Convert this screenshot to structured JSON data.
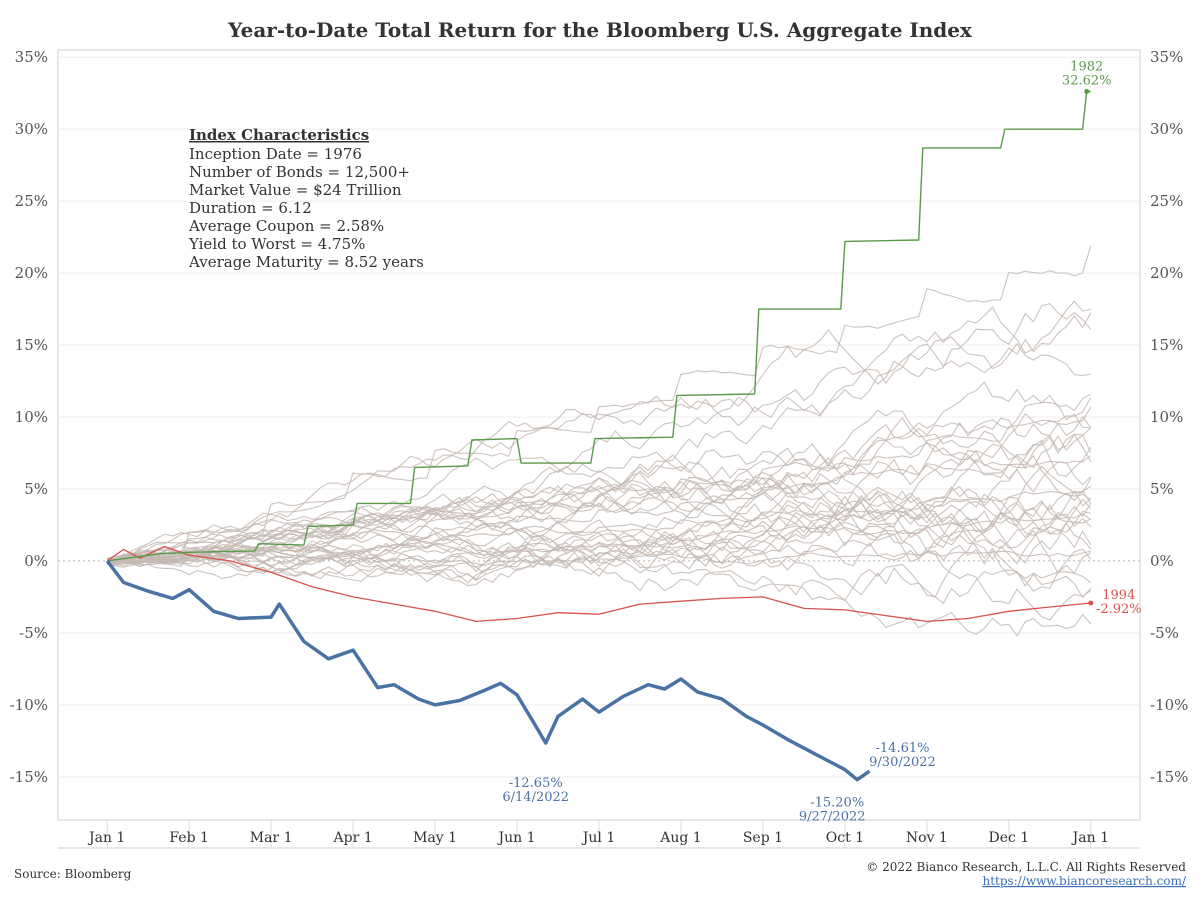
{
  "colors": {
    "highlight_2022": "#4a72a4",
    "year_1982": "#5a9a4a",
    "year_1994": "#d9534f",
    "other_years": "#c4b8b3",
    "link": "#3b6fb6"
  },
  "characteristics": {
    "heading": "Index Characteristics",
    "lines": [
      "Inception Date = 1976",
      "Number of Bonds = 12,500+",
      "Market Value = $24 Trillion",
      "Duration = 6.12",
      "Average Coupon = 2.58%",
      "Yield to Worst = 4.75%",
      "Average Maturity = 8.52 years"
    ]
  },
  "footer": {
    "source": "Source: Bloomberg",
    "copyright": "© 2022 Bianco Research, L.L.C. All Rights Reserved",
    "url": "https://www.biancoresearch.com/"
  },
  "chart_data": {
    "type": "line",
    "title": "Year-to-Date Total Return for the Bloomberg U.S. Aggregate Index",
    "xlabel": "",
    "ylabel": "",
    "x_unit": "months since Jan 1",
    "xlim": [
      -0.6,
      12.6
    ],
    "ylim": [
      -18,
      35.5
    ],
    "y_ticks": [
      35,
      30,
      25,
      20,
      15,
      10,
      5,
      0,
      -5,
      -10,
      -15
    ],
    "y_tick_labels": [
      "35%",
      "30%",
      "25%",
      "20%",
      "15%",
      "10%",
      "5%",
      "0%",
      "-5%",
      "-10%",
      "-15%"
    ],
    "x_ticks": [
      0,
      1,
      2,
      3,
      4,
      5,
      6,
      7,
      8,
      9,
      10,
      11,
      12
    ],
    "x_tick_labels": [
      "Jan 1",
      "Feb 1",
      "Mar 1",
      "Apr 1",
      "May 1",
      "Jun 1",
      "Jul 1",
      "Aug 1",
      "Sep 1",
      "Oct 1",
      "Nov 1",
      "Dec 1",
      "Jan 1"
    ],
    "grid": true,
    "zero_line": "dotted",
    "highlighted_series": [
      {
        "name": "2022",
        "x": [
          0,
          0.2,
          0.5,
          0.8,
          1.0,
          1.3,
          1.6,
          2.0,
          2.1,
          2.4,
          2.7,
          3.0,
          3.3,
          3.5,
          3.8,
          4.0,
          4.3,
          4.6,
          4.8,
          5.0,
          5.2,
          5.35,
          5.5,
          5.8,
          6.0,
          6.3,
          6.6,
          6.8,
          7.0,
          7.2,
          7.5,
          7.8,
          8.0,
          8.3,
          8.6,
          8.8,
          9.0,
          9.15,
          9.3
        ],
        "values": [
          0,
          -1.5,
          -2.1,
          -2.6,
          -2.0,
          -3.5,
          -4.0,
          -3.9,
          -3.0,
          -5.6,
          -6.8,
          -6.2,
          -8.8,
          -8.6,
          -9.6,
          -10.0,
          -9.7,
          -9.0,
          -8.5,
          -9.3,
          -11.2,
          -12.65,
          -10.8,
          -9.6,
          -10.5,
          -9.4,
          -8.6,
          -8.9,
          -8.2,
          -9.1,
          -9.6,
          -10.8,
          -11.4,
          -12.4,
          -13.3,
          -13.9,
          -14.5,
          -15.2,
          -14.61
        ]
      },
      {
        "name": "1982",
        "x": [
          0,
          0.65,
          1.0,
          1.8,
          1.85,
          2.4,
          2.45,
          3.0,
          3.05,
          3.7,
          3.75,
          4.4,
          4.45,
          5.0,
          5.05,
          5.9,
          5.95,
          6.9,
          6.95,
          7.9,
          7.95,
          8.95,
          9.0,
          9.9,
          9.95,
          10.9,
          10.95,
          11.9,
          11.95,
          12.0
        ],
        "values": [
          0,
          0.5,
          0.6,
          0.7,
          1.2,
          1.1,
          2.4,
          2.5,
          4.0,
          4.0,
          6.5,
          6.6,
          8.4,
          8.5,
          6.8,
          6.8,
          8.5,
          8.6,
          11.5,
          11.6,
          17.5,
          17.5,
          22.2,
          22.3,
          28.7,
          28.7,
          30.0,
          30.0,
          32.62,
          32.62
        ]
      },
      {
        "name": "1994",
        "x": [
          0,
          0.2,
          0.4,
          0.7,
          1.0,
          1.5,
          2.0,
          2.5,
          3.0,
          3.5,
          4.0,
          4.5,
          5.0,
          5.5,
          6.0,
          6.5,
          7.0,
          7.5,
          8.0,
          8.5,
          9.0,
          9.5,
          10.0,
          10.5,
          11.0,
          11.5,
          12.0
        ],
        "values": [
          0,
          0.8,
          0.2,
          1.0,
          0.4,
          0.0,
          -0.8,
          -1.8,
          -2.5,
          -3.0,
          -3.5,
          -4.2,
          -4.0,
          -3.6,
          -3.7,
          -3.0,
          -2.8,
          -2.6,
          -2.5,
          -3.3,
          -3.4,
          -3.8,
          -4.2,
          -4.0,
          -3.5,
          -3.2,
          -2.92
        ]
      }
    ],
    "background_series_finals": [
      22,
      18.5,
      16,
      15.3,
      14.8,
      11.6,
      10.4,
      9.8,
      9.3,
      8.6,
      8.2,
      7.9,
      7.5,
      7.2,
      6.8,
      6.4,
      6.0,
      5.6,
      5.2,
      4.9,
      4.5,
      4.2,
      3.8,
      3.4,
      3.0,
      2.6,
      2.2,
      1.8,
      1.4,
      1.0,
      0.6,
      0.2,
      -0.4,
      -0.9,
      -1.4,
      -1.8
    ],
    "annotations": [
      {
        "text": "1982",
        "x": 11.95,
        "y": 32.62,
        "series": "1982"
      },
      {
        "text": "32.62%",
        "x": 11.95,
        "y": 32.62,
        "series": "1982"
      },
      {
        "text": "1994",
        "x": 12.0,
        "y": -2.92,
        "series": "1994"
      },
      {
        "text": "-2.92%",
        "x": 12.0,
        "y": -2.92,
        "series": "1994"
      },
      {
        "text": "-12.65%",
        "x": 5.35,
        "y": -12.65,
        "series": "2022"
      },
      {
        "text": "6/14/2022",
        "x": 5.35,
        "y": -12.65,
        "series": "2022"
      },
      {
        "text": "-15.20%",
        "x": 9.15,
        "y": -15.2,
        "series": "2022"
      },
      {
        "text": "9/27/2022",
        "x": 9.15,
        "y": -15.2,
        "series": "2022"
      },
      {
        "text": "-14.61%",
        "x": 9.3,
        "y": -14.61,
        "series": "2022"
      },
      {
        "text": "9/30/2022",
        "x": 9.3,
        "y": -14.61,
        "series": "2022"
      }
    ]
  }
}
